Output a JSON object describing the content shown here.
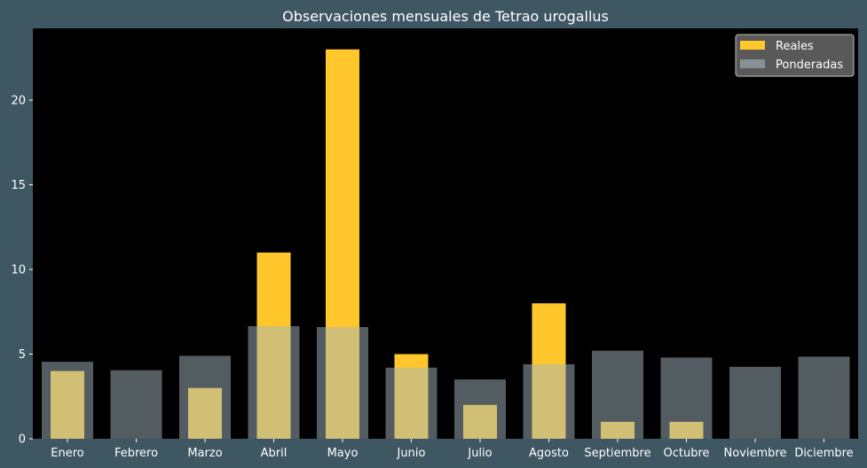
{
  "chart_data": {
    "type": "bar",
    "title": "Observaciones mensuales de Tetrao urogallus",
    "xlabel": "",
    "ylabel": "",
    "categories": [
      "Enero",
      "Febrero",
      "Marzo",
      "Abril",
      "Mayo",
      "Junio",
      "Julio",
      "Agosto",
      "Septiembre",
      "Octubre",
      "Noviembre",
      "Diciembre"
    ],
    "series": [
      {
        "name": "Reales",
        "color": "#ffc72c",
        "values": [
          4,
          0,
          3,
          11,
          23,
          5,
          2,
          8,
          1,
          1,
          0,
          0
        ]
      },
      {
        "name": "Ponderadas",
        "color": "#a6b8bf",
        "values": [
          4.55,
          4.05,
          4.9,
          6.65,
          6.6,
          4.2,
          3.5,
          4.4,
          5.2,
          4.8,
          4.25,
          4.85
        ]
      }
    ],
    "ylim": [
      0,
      24
    ],
    "yticks": [
      0,
      5,
      10,
      15,
      20
    ],
    "legend_position": "top-right",
    "grid": false,
    "colors": {
      "page_background": "#3f5663",
      "plot_background": "#000000",
      "text": "#ffffff",
      "legend_background": "#595959"
    }
  }
}
